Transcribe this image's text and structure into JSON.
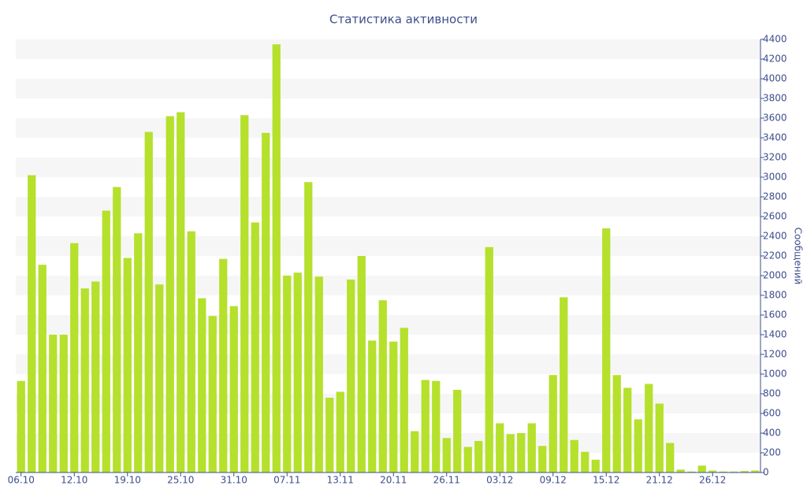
{
  "chart_data": {
    "type": "bar",
    "title": "Статистика активности",
    "y_axis_label": "Сообщений",
    "categories": [
      "06.10",
      null,
      null,
      null,
      null,
      "12.10",
      null,
      null,
      null,
      null,
      "19.10",
      null,
      null,
      null,
      null,
      "25.10",
      null,
      null,
      null,
      null,
      "31.10",
      null,
      null,
      null,
      null,
      "07.11",
      null,
      null,
      null,
      null,
      "13.11",
      null,
      null,
      null,
      null,
      "20.11",
      null,
      null,
      null,
      null,
      "26.11",
      null,
      null,
      null,
      null,
      "03.12",
      null,
      null,
      null,
      null,
      "09.12",
      null,
      null,
      null,
      null,
      "15.12",
      null,
      null,
      null,
      null,
      "21.12",
      null,
      null,
      null,
      null,
      "26.12",
      null,
      null,
      null,
      null
    ],
    "values": [
      930,
      3020,
      2110,
      1400,
      1400,
      2330,
      1870,
      1940,
      2660,
      2900,
      2180,
      2430,
      3460,
      1910,
      3620,
      3660,
      2450,
      1770,
      1590,
      2170,
      1690,
      3630,
      2540,
      3450,
      4350,
      2000,
      2030,
      2950,
      1990,
      760,
      820,
      1960,
      2200,
      1340,
      1750,
      1330,
      1470,
      420,
      940,
      930,
      350,
      840,
      260,
      320,
      2290,
      500,
      390,
      400,
      500,
      270,
      990,
      1780,
      330,
      210,
      130,
      2480,
      990,
      860,
      540,
      900,
      700,
      300,
      30,
      10,
      70,
      20,
      10,
      10,
      15,
      20
    ],
    "color": "#b5e02c",
    "ylim": [
      0,
      4400
    ],
    "yticks": [
      0,
      200,
      400,
      600,
      800,
      1000,
      1200,
      1400,
      1600,
      1800,
      2000,
      2200,
      2400,
      2600,
      2800,
      3000,
      3200,
      3400,
      3600,
      3800,
      4000,
      4200,
      4400
    ],
    "grid": true
  }
}
